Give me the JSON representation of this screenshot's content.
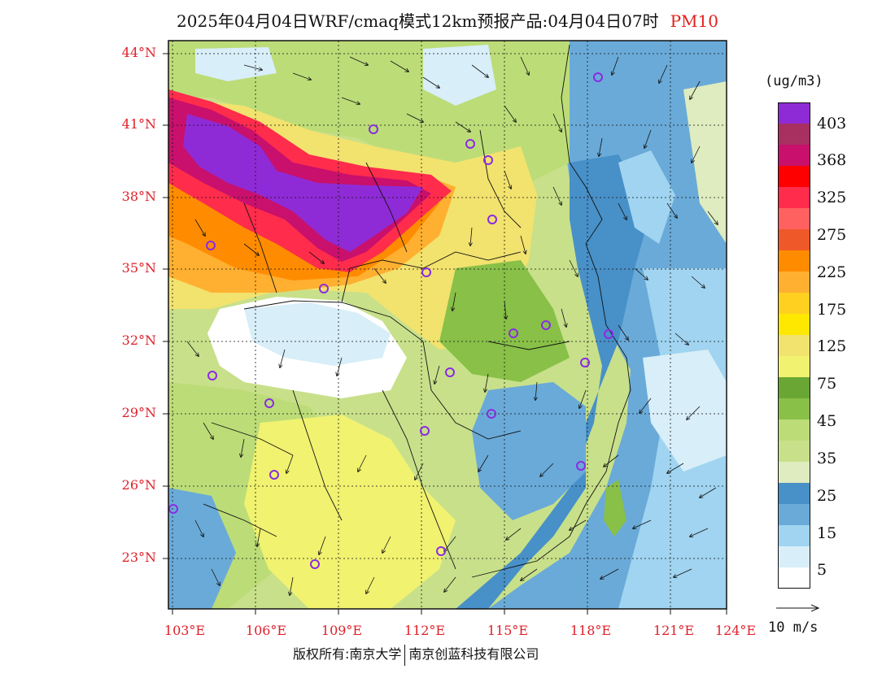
{
  "title": {
    "main": "2025年04月04日WRF/cmaq模式12km预报产品:04月04日07时",
    "variable": "PM10"
  },
  "axes": {
    "lat_labels": [
      "44°N",
      "41°N",
      "38°N",
      "35°N",
      "32°N",
      "29°N",
      "26°N",
      "23°N"
    ],
    "lon_labels": [
      "103°E",
      "106°E",
      "109°E",
      "112°E",
      "115°E",
      "118°E",
      "121°E",
      "124°E"
    ]
  },
  "legend": {
    "unit": "(ug/m3)",
    "labels": [
      "403",
      "368",
      "325",
      "275",
      "225",
      "175",
      "125",
      "75",
      "45",
      "35",
      "25",
      "15",
      "5"
    ],
    "colors": [
      "#8f2bd6",
      "#a83060",
      "#c8106c",
      "#ff0000",
      "#ff2c4c",
      "#ff6060",
      "#ef5828",
      "#ff8c00",
      "#ffb030",
      "#ffd020",
      "#ffe800",
      "#f2e26e",
      "#f0f270",
      "#6aa634",
      "#88c048",
      "#bcdc78",
      "#c8e08a",
      "#deecc0",
      "#4890c8",
      "#6aaad8",
      "#a0d4f0",
      "#d8eef8",
      "#ffffff"
    ]
  },
  "vector_reference": {
    "label": "10 m/s"
  },
  "stations": {
    "marker_color": "#8a2be2"
  },
  "copyright": {
    "left": "版权所有:南京大学",
    "right": "南京创蓝科技有限公司"
  }
}
